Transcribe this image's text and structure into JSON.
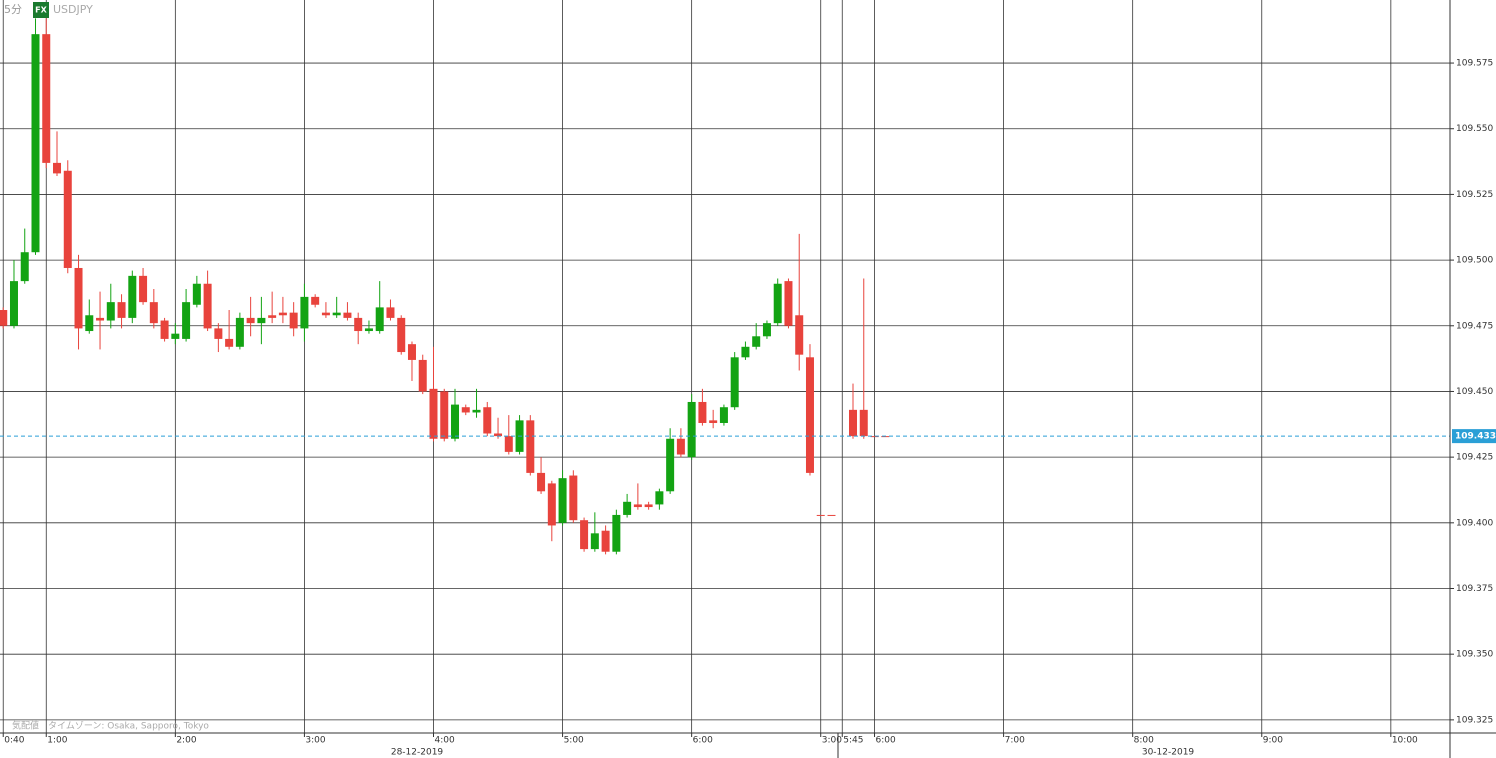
{
  "chart_data": {
    "type": "candlestick",
    "interval": "5分",
    "badge": "FX",
    "symbol": "USDJPY",
    "note": "気配値　タイムゾーン: Osaka, Sapporo, Tokyo",
    "date_labels": [
      "28-12-2019",
      "30-12-2019"
    ],
    "up_color": "#13a313",
    "down_color": "#e8433c",
    "x": [
      0,
      1,
      2,
      3,
      4,
      5,
      6,
      7,
      8,
      9,
      10,
      11,
      12,
      13,
      14,
      15,
      16,
      17,
      18,
      19,
      20,
      21,
      22,
      23,
      24,
      25,
      26,
      27,
      28,
      29,
      30,
      31,
      32,
      33,
      34,
      35,
      36,
      37,
      38,
      39,
      40,
      41,
      42,
      43,
      44,
      45,
      46,
      47,
      48,
      49,
      50,
      51,
      52,
      53,
      54,
      55,
      56,
      57,
      58,
      59,
      60,
      61,
      62,
      63,
      64,
      65,
      66,
      67,
      68,
      69,
      70,
      71,
      72,
      73,
      74,
      75,
      76,
      77,
      79,
      80,
      81,
      82
    ],
    "open": [
      109.481,
      109.475,
      109.492,
      109.503,
      109.586,
      109.537,
      109.534,
      109.497,
      109.473,
      109.478,
      109.477,
      109.484,
      109.478,
      109.494,
      109.484,
      109.477,
      109.47,
      109.47,
      109.483,
      109.491,
      109.474,
      109.47,
      109.467,
      109.478,
      109.476,
      109.479,
      109.48,
      109.48,
      109.474,
      109.486,
      109.48,
      109.479,
      109.48,
      109.478,
      109.473,
      109.473,
      109.482,
      109.478,
      109.468,
      109.462,
      109.451,
      109.45,
      109.432,
      109.444,
      109.442,
      109.444,
      109.434,
      109.433,
      109.427,
      109.439,
      109.419,
      109.415,
      109.4,
      109.418,
      109.401,
      109.39,
      109.397,
      109.389,
      109.403,
      109.407,
      109.407,
      109.407,
      109.412,
      109.432,
      109.425,
      109.446,
      109.439,
      109.438,
      109.444,
      109.463,
      109.467,
      109.471,
      109.476,
      109.492,
      109.479,
      109.463,
      109.403,
      109.403,
      109.443,
      109.443,
      109.433,
      109.433
    ],
    "high": [
      109.482,
      109.5,
      109.512,
      109.592,
      109.592,
      109.549,
      109.538,
      109.502,
      109.485,
      109.488,
      109.491,
      109.487,
      109.496,
      109.497,
      109.489,
      109.478,
      109.476,
      109.489,
      109.494,
      109.496,
      109.476,
      109.481,
      109.48,
      109.486,
      109.486,
      109.488,
      109.486,
      109.484,
      109.491,
      109.487,
      109.484,
      109.486,
      109.484,
      109.48,
      109.477,
      109.492,
      109.485,
      109.479,
      109.469,
      109.464,
      109.467,
      109.451,
      109.451,
      109.445,
      109.451,
      109.446,
      109.44,
      109.441,
      109.441,
      109.441,
      109.425,
      109.416,
      109.42,
      109.42,
      109.402,
      109.404,
      109.399,
      109.405,
      109.411,
      109.415,
      109.408,
      109.413,
      109.436,
      109.436,
      109.449,
      109.451,
      109.443,
      109.445,
      109.465,
      109.469,
      109.476,
      109.477,
      109.493,
      109.493,
      109.51,
      109.468,
      109.403,
      109.403,
      109.453,
      109.493,
      109.433,
      109.433
    ],
    "low": [
      109.474,
      109.474,
      109.491,
      109.502,
      109.535,
      109.532,
      109.495,
      109.466,
      109.472,
      109.466,
      109.474,
      109.474,
      109.476,
      109.483,
      109.474,
      109.469,
      109.468,
      109.469,
      109.482,
      109.473,
      109.465,
      109.466,
      109.466,
      109.471,
      109.468,
      109.476,
      109.476,
      109.471,
      109.469,
      109.482,
      109.478,
      109.478,
      109.477,
      109.468,
      109.472,
      109.472,
      109.477,
      109.464,
      109.454,
      109.449,
      109.431,
      109.431,
      109.431,
      109.441,
      109.44,
      109.433,
      109.432,
      109.426,
      109.426,
      109.418,
      109.411,
      109.393,
      109.399,
      109.4,
      109.389,
      109.389,
      109.388,
      109.388,
      109.402,
      109.405,
      109.405,
      109.405,
      109.411,
      109.425,
      109.424,
      109.437,
      109.436,
      109.437,
      109.443,
      109.462,
      109.466,
      109.47,
      109.475,
      109.474,
      109.458,
      109.418,
      109.403,
      109.403,
      109.432,
      109.432,
      109.433,
      109.433
    ],
    "close": [
      109.475,
      109.492,
      109.503,
      109.586,
      109.537,
      109.533,
      109.497,
      109.474,
      109.479,
      109.477,
      109.484,
      109.478,
      109.494,
      109.484,
      109.476,
      109.47,
      109.472,
      109.484,
      109.491,
      109.474,
      109.47,
      109.467,
      109.478,
      109.476,
      109.478,
      109.478,
      109.479,
      109.474,
      109.486,
      109.483,
      109.479,
      109.48,
      109.478,
      109.473,
      109.474,
      109.482,
      109.478,
      109.465,
      109.462,
      109.45,
      109.432,
      109.432,
      109.445,
      109.442,
      109.443,
      109.434,
      109.433,
      109.427,
      109.439,
      109.419,
      109.412,
      109.399,
      109.417,
      109.401,
      109.39,
      109.396,
      109.389,
      109.403,
      109.408,
      109.406,
      109.406,
      109.412,
      109.432,
      109.426,
      109.446,
      109.438,
      109.438,
      109.444,
      109.463,
      109.467,
      109.471,
      109.476,
      109.491,
      109.475,
      109.464,
      109.419,
      109.403,
      109.403,
      109.433,
      109.433,
      109.433,
      109.433
    ],
    "last_price": 109.433,
    "last_price_color": "#2a9fd6",
    "xlim": [
      -0.3,
      134.5
    ],
    "xticks": [
      {
        "value": 0,
        "label": "0:40"
      },
      {
        "value": 4,
        "label": "1:00"
      },
      {
        "value": 16,
        "label": "2:00"
      },
      {
        "value": 28,
        "label": "3:00"
      },
      {
        "value": 40,
        "label": "4:00"
      },
      {
        "value": 52,
        "label": "5:00"
      },
      {
        "value": 64,
        "label": "6:00"
      },
      {
        "value": 76,
        "label": "3:00"
      },
      {
        "value": 78,
        "label": "5:45"
      },
      {
        "value": 81,
        "label": "6:00"
      },
      {
        "value": 93,
        "label": "7:00"
      },
      {
        "value": 105,
        "label": "8:00"
      },
      {
        "value": 117,
        "label": "9:00"
      },
      {
        "value": 129,
        "label": "10:00"
      }
    ],
    "ylim": [
      109.32,
      109.599
    ],
    "yticks": [
      109.325,
      {
        "value": 109.35,
        "label": "109.350"
      },
      109.375,
      {
        "value": 109.4,
        "label": "109.400"
      },
      109.425,
      {
        "value": 109.45,
        "label": "109.450"
      },
      109.475,
      {
        "value": 109.5,
        "label": "109.500"
      },
      109.525,
      {
        "value": 109.55,
        "label": "109.550"
      },
      109.575
    ],
    "grid": true
  }
}
